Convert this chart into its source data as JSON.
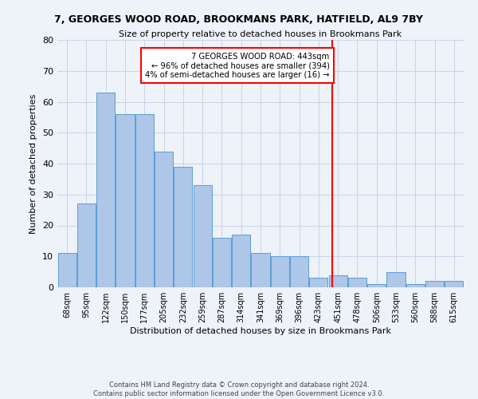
{
  "title1": "7, GEORGES WOOD ROAD, BROOKMANS PARK, HATFIELD, AL9 7BY",
  "title2": "Size of property relative to detached houses in Brookmans Park",
  "xlabel": "Distribution of detached houses by size in Brookmans Park",
  "ylabel": "Number of detached properties",
  "footnote1": "Contains HM Land Registry data © Crown copyright and database right 2024.",
  "footnote2": "Contains public sector information licensed under the Open Government Licence v3.0.",
  "bar_labels": [
    "68sqm",
    "95sqm",
    "122sqm",
    "150sqm",
    "177sqm",
    "205sqm",
    "232sqm",
    "259sqm",
    "287sqm",
    "314sqm",
    "341sqm",
    "369sqm",
    "396sqm",
    "423sqm",
    "451sqm",
    "478sqm",
    "506sqm",
    "533sqm",
    "560sqm",
    "588sqm",
    "615sqm"
  ],
  "bar_values": [
    11,
    27,
    63,
    56,
    56,
    44,
    39,
    33,
    16,
    17,
    11,
    10,
    10,
    3,
    4,
    3,
    1,
    5,
    1,
    2,
    2
  ],
  "bar_color": "#aec6e8",
  "bar_edge_color": "#5a9fd4",
  "vline_x": 13.72,
  "vline_color": "red",
  "ylim": [
    0,
    80
  ],
  "yticks": [
    0,
    10,
    20,
    30,
    40,
    50,
    60,
    70,
    80
  ],
  "annotation_text": "7 GEORGES WOOD ROAD: 443sqm\n← 96% of detached houses are smaller (394)\n4% of semi-detached houses are larger (16) →",
  "annotation_box_color": "white",
  "annotation_box_edge_color": "red",
  "bg_color": "#eef2f9",
  "grid_color": "#c8d4e8"
}
